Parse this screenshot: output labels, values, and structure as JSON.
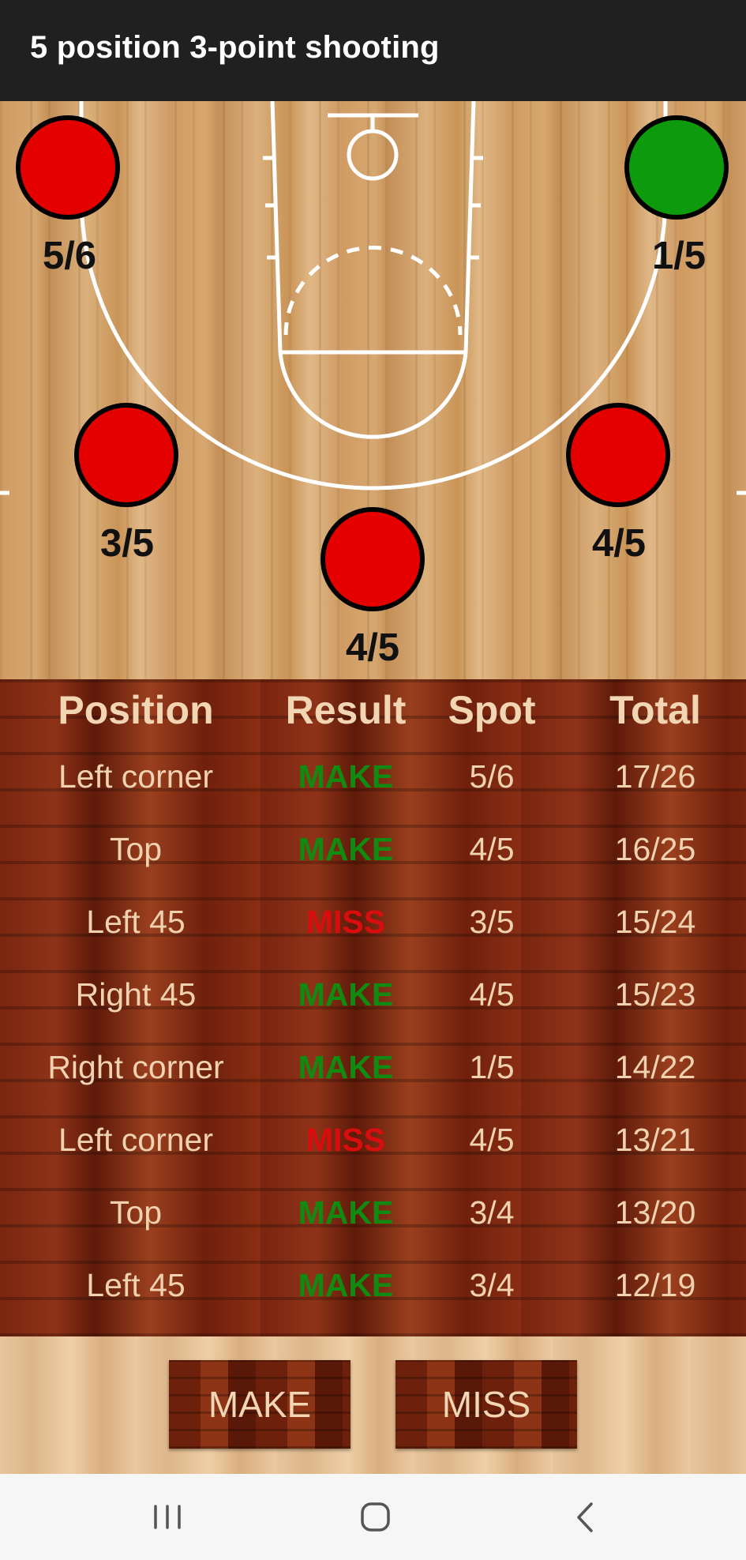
{
  "app_bar": {
    "title": "5 position 3-point shooting"
  },
  "court": {
    "spots": [
      {
        "name": "left-corner",
        "label": "5/6",
        "color": "#e50000"
      },
      {
        "name": "right-corner",
        "label": "1/5",
        "color": "#0d9a0d"
      },
      {
        "name": "left-45",
        "label": "3/5",
        "color": "#e50000"
      },
      {
        "name": "right-45",
        "label": "4/5",
        "color": "#e50000"
      },
      {
        "name": "top",
        "label": "4/5",
        "color": "#e50000"
      }
    ]
  },
  "table": {
    "headers": {
      "position": "Position",
      "result": "Result",
      "spot": "Spot",
      "total": "Total"
    },
    "rows": [
      {
        "position": "Left corner",
        "result": "MAKE",
        "spot": "5/6",
        "total": "17/26"
      },
      {
        "position": "Top",
        "result": "MAKE",
        "spot": "4/5",
        "total": "16/25"
      },
      {
        "position": "Left 45",
        "result": "MISS",
        "spot": "3/5",
        "total": "15/24"
      },
      {
        "position": "Right 45",
        "result": "MAKE",
        "spot": "4/5",
        "total": "15/23"
      },
      {
        "position": "Right corner",
        "result": "MAKE",
        "spot": "1/5",
        "total": "14/22"
      },
      {
        "position": "Left corner",
        "result": "MISS",
        "spot": "4/5",
        "total": "13/21"
      },
      {
        "position": "Top",
        "result": "MAKE",
        "spot": "3/4",
        "total": "13/20"
      },
      {
        "position": "Left 45",
        "result": "MAKE",
        "spot": "3/4",
        "total": "12/19"
      }
    ]
  },
  "buttons": {
    "make_label": "MAKE",
    "miss_label": "MISS"
  },
  "nav": {
    "icons": [
      "recent-apps-icon",
      "home-icon",
      "back-icon"
    ]
  }
}
